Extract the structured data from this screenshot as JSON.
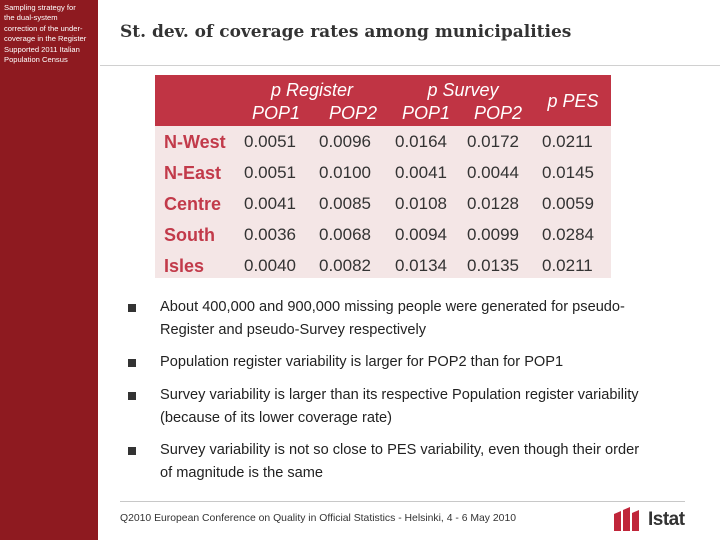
{
  "sidebar": {
    "lines": [
      "Sampling strategy for",
      "the dual-system",
      "correction of the under-",
      "coverage in the Register",
      "Supported 2011 Italian",
      "Population Census"
    ]
  },
  "title": "St. dev. of coverage rates among municipalities",
  "table": {
    "group_headers": {
      "register": "p Register",
      "survey": "p Survey",
      "pes": "p PES"
    },
    "sub_headers": [
      "POP1",
      "POP2",
      "POP1",
      "POP2"
    ],
    "rows": [
      {
        "region": "N-West",
        "values": [
          "0.0051",
          "0.0096",
          "0.0164",
          "0.0172",
          "0.0211"
        ]
      },
      {
        "region": "N-East",
        "values": [
          "0.0051",
          "0.0100",
          "0.0041",
          "0.0044",
          "0.0145"
        ]
      },
      {
        "region": "Centre",
        "values": [
          "0.0041",
          "0.0085",
          "0.0108",
          "0.0128",
          "0.0059"
        ]
      },
      {
        "region": "South",
        "values": [
          "0.0036",
          "0.0068",
          "0.0094",
          "0.0099",
          "0.0284"
        ]
      },
      {
        "region": "Isles",
        "values": [
          "0.0040",
          "0.0082",
          "0.0134",
          "0.0135",
          "0.0211"
        ]
      }
    ]
  },
  "bullets": [
    {
      "line1": "About 400,000 and 900,000 missing people were generated for pseudo-",
      "line2": "Register and pseudo-Survey respectively"
    },
    {
      "line1": "Population register variability is larger for POP2 than for POP1",
      "line2": ""
    },
    {
      "line1": "Survey variability is larger than its respective Population register variability",
      "line2": "(because of its lower coverage rate)"
    },
    {
      "line1": "Survey variability is not so close to PES variability, even though their order",
      "line2": "of magnitude is the same"
    }
  ],
  "footer": "Q2010 European Conference on Quality in Official Statistics - Helsinki, 4 - 6 May 2010",
  "logo": {
    "text": "Istat",
    "icon": "istat-logo-icon"
  },
  "colors": {
    "sidebar": "#8e1a20",
    "header": "#c03444",
    "table_bg": "#f4e6e6",
    "region": "#c23a4a"
  }
}
